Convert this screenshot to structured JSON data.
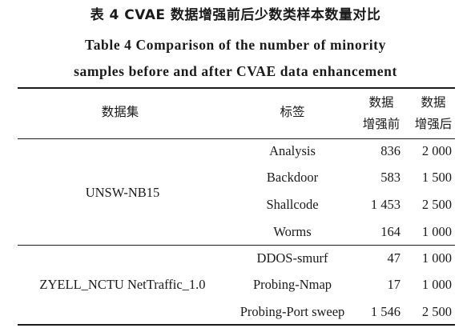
{
  "caption": {
    "cn": "表 4  CVAE 数据增强前后少数类样本数量对比",
    "en_line1": "Table 4   Comparison of the number of minority",
    "en_line2": "samples before and after CVAE data enhancement"
  },
  "table": {
    "headers": {
      "dataset": "数据集",
      "label": "标签",
      "before_line1": "数据",
      "before_line2": "增强前",
      "after_line1": "数据",
      "after_line2": "增强后"
    },
    "groups": [
      {
        "dataset": "UNSW-NB15",
        "rows": [
          {
            "label": "Analysis",
            "before": "836",
            "after": "2 000"
          },
          {
            "label": "Backdoor",
            "before": "583",
            "after": "1 500"
          },
          {
            "label": "Shallcode",
            "before": "1 453",
            "after": "2 500"
          },
          {
            "label": "Worms",
            "before": "164",
            "after": "1 000"
          }
        ]
      },
      {
        "dataset": "ZYELL_NCTU NetTraffic_1.0",
        "rows": [
          {
            "label": "DDOS-smurf",
            "before": "47",
            "after": "1 000"
          },
          {
            "label": "Probing-Nmap",
            "before": "17",
            "after": "1 000"
          },
          {
            "label": "Probing-Port sweep",
            "before": "1 546",
            "after": "2 500"
          }
        ]
      }
    ]
  }
}
